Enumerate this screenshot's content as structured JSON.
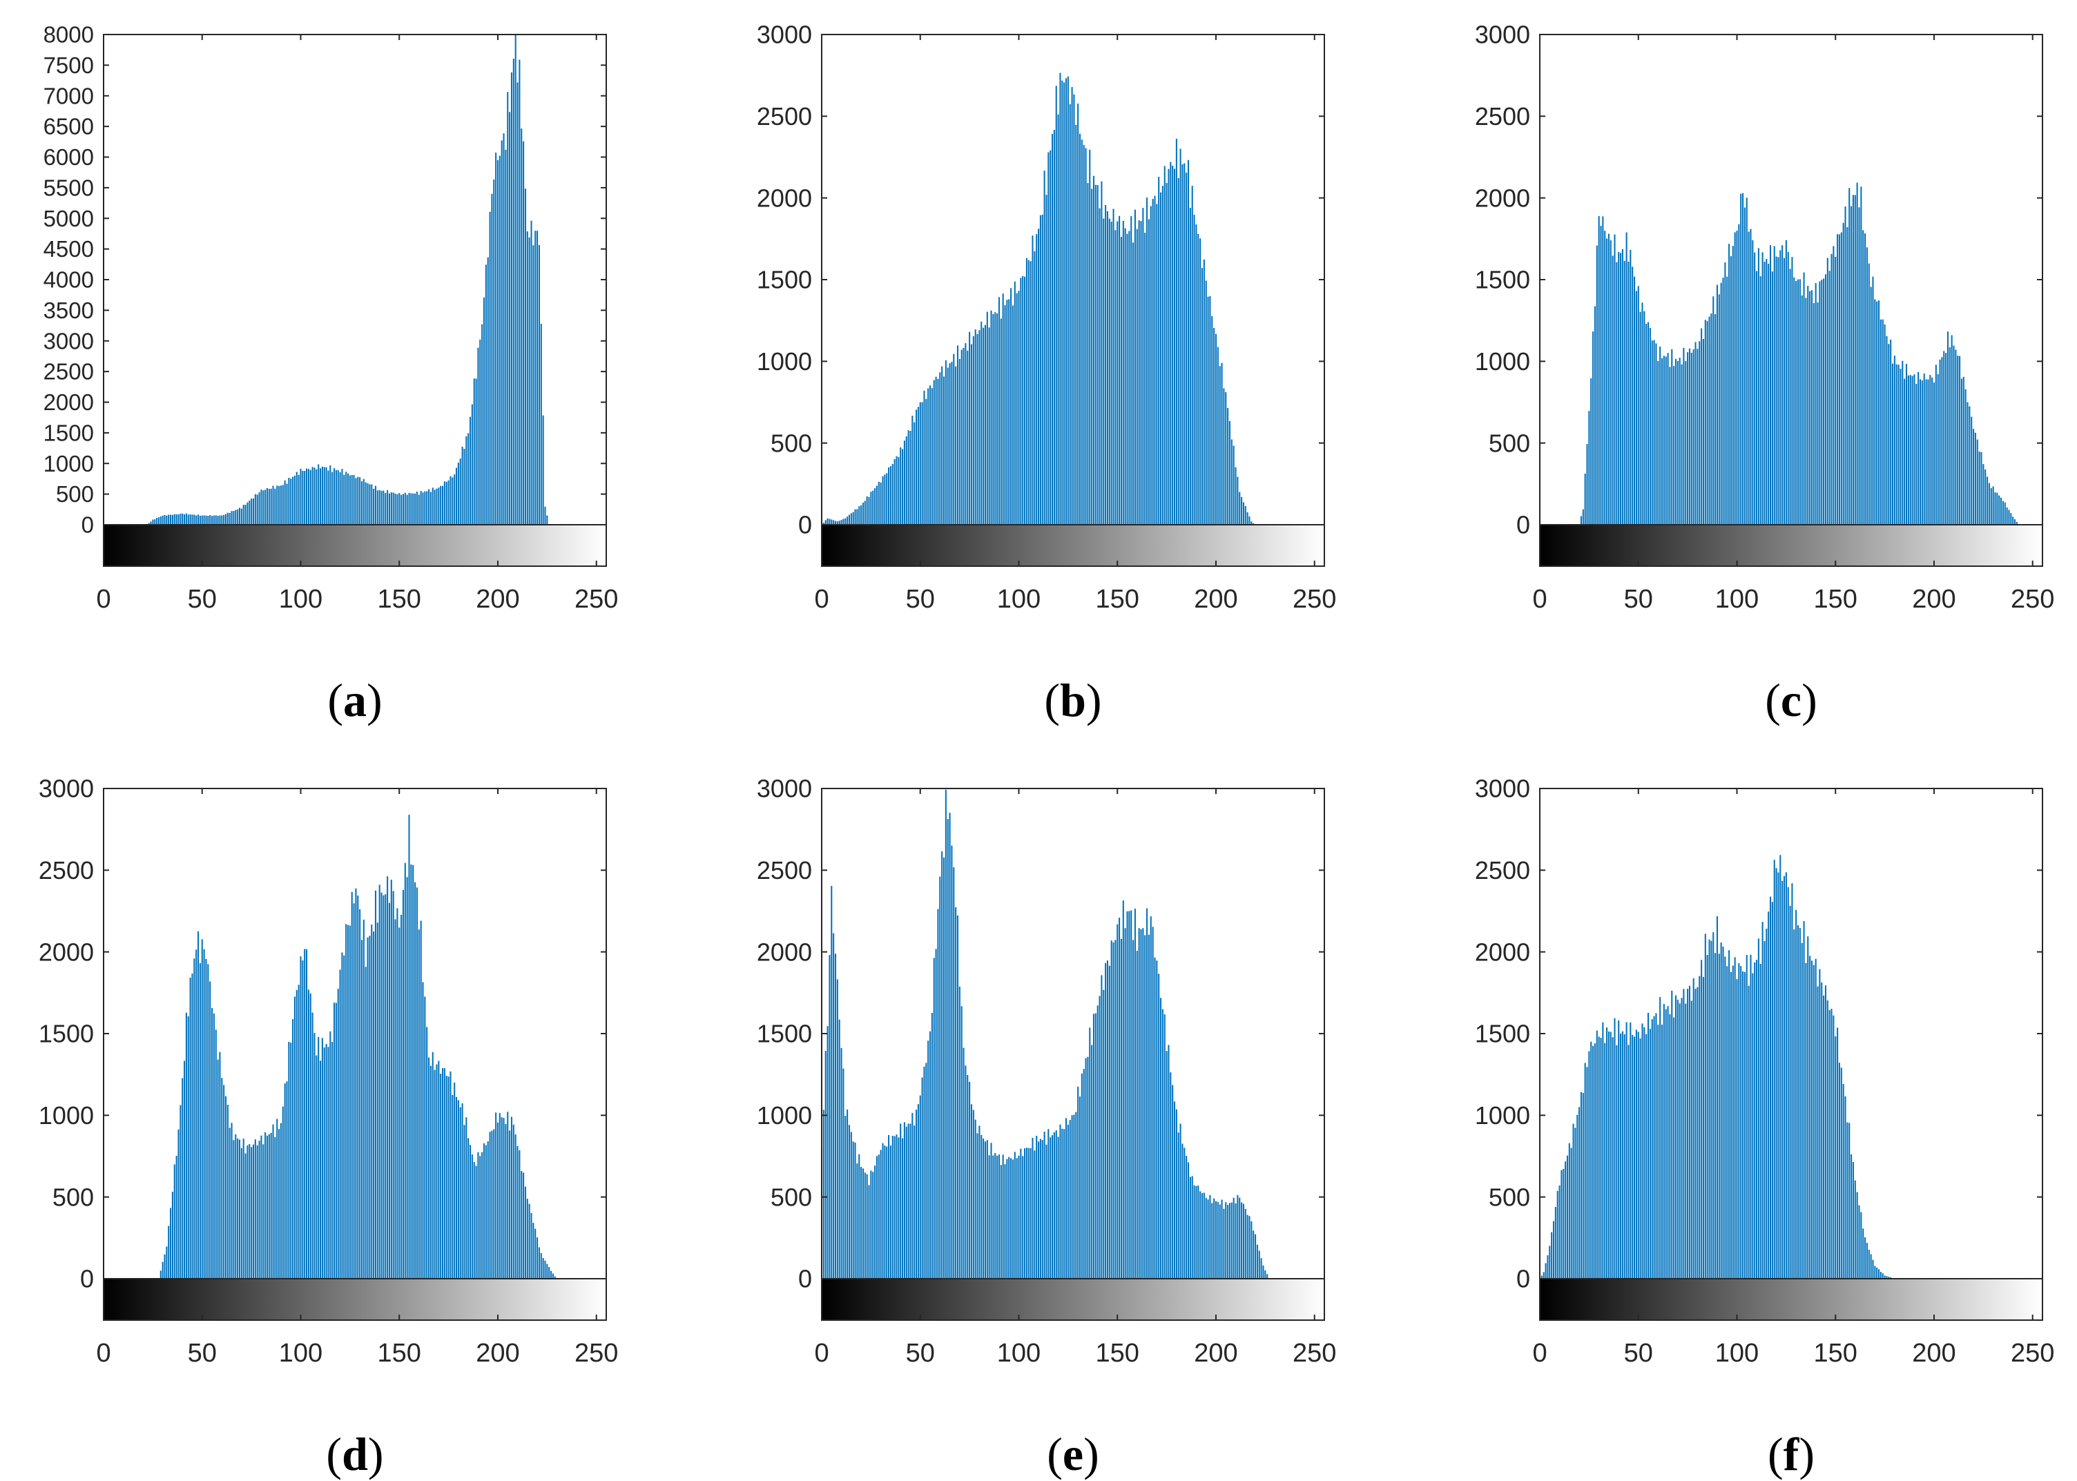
{
  "figure": {
    "bar_color": "#0072BD",
    "axis_color": "#262626",
    "gradient_start": "#000000",
    "gradient_end": "#ffffff"
  },
  "chart_data": [
    {
      "type": "bar",
      "panel": "a",
      "caption_open": "(",
      "caption_letter": "a",
      "caption_close": ")",
      "title": "",
      "xlabel": "",
      "ylabel": "",
      "xlim": [
        0,
        255
      ],
      "ylim": [
        0,
        8000
      ],
      "xticks": [
        0,
        50,
        100,
        150,
        200,
        250
      ],
      "yticks": [
        0,
        500,
        1000,
        1500,
        2000,
        2500,
        3000,
        3500,
        4000,
        4500,
        5000,
        5500,
        6000,
        6500,
        7000,
        7500,
        8000
      ],
      "colorbar": "grayscale 0-255",
      "profile": [
        [
          0,
          0
        ],
        [
          22,
          0
        ],
        [
          25,
          80
        ],
        [
          30,
          150
        ],
        [
          40,
          180
        ],
        [
          50,
          150
        ],
        [
          60,
          150
        ],
        [
          70,
          280
        ],
        [
          80,
          560
        ],
        [
          90,
          640
        ],
        [
          100,
          880
        ],
        [
          110,
          950
        ],
        [
          120,
          880
        ],
        [
          130,
          760
        ],
        [
          140,
          560
        ],
        [
          150,
          500
        ],
        [
          160,
          520
        ],
        [
          170,
          600
        ],
        [
          178,
          820
        ],
        [
          185,
          1500
        ],
        [
          192,
          3300
        ],
        [
          198,
          5800
        ],
        [
          204,
          6400
        ],
        [
          209,
          7900
        ],
        [
          212,
          6800
        ],
        [
          215,
          4800
        ],
        [
          221,
          4700
        ],
        [
          224,
          300
        ],
        [
          226,
          0
        ],
        [
          255,
          0
        ]
      ]
    },
    {
      "type": "bar",
      "panel": "b",
      "caption_open": "(",
      "caption_letter": "b",
      "caption_close": ")",
      "title": "",
      "xlabel": "",
      "ylabel": "",
      "xlim": [
        0,
        255
      ],
      "ylim": [
        0,
        3000
      ],
      "xticks": [
        0,
        50,
        100,
        150,
        200,
        250
      ],
      "yticks": [
        0,
        500,
        1000,
        1500,
        2000,
        2500,
        3000
      ],
      "colorbar": "grayscale 0-255",
      "profile": [
        [
          0,
          0
        ],
        [
          3,
          40
        ],
        [
          8,
          20
        ],
        [
          12,
          40
        ],
        [
          20,
          120
        ],
        [
          30,
          270
        ],
        [
          40,
          450
        ],
        [
          50,
          750
        ],
        [
          60,
          930
        ],
        [
          70,
          1050
        ],
        [
          80,
          1200
        ],
        [
          90,
          1330
        ],
        [
          100,
          1450
        ],
        [
          110,
          1800
        ],
        [
          116,
          2300
        ],
        [
          120,
          2650
        ],
        [
          123,
          2750
        ],
        [
          128,
          2600
        ],
        [
          135,
          2200
        ],
        [
          145,
          1900
        ],
        [
          155,
          1800
        ],
        [
          165,
          1900
        ],
        [
          175,
          2150
        ],
        [
          180,
          2250
        ],
        [
          185,
          2200
        ],
        [
          195,
          1500
        ],
        [
          205,
          800
        ],
        [
          212,
          200
        ],
        [
          218,
          20
        ],
        [
          220,
          0
        ],
        [
          255,
          0
        ]
      ]
    },
    {
      "type": "bar",
      "panel": "c",
      "caption_open": "(",
      "caption_letter": "c",
      "caption_close": ")",
      "title": "",
      "xlabel": "",
      "ylabel": "",
      "xlim": [
        0,
        255
      ],
      "ylim": [
        0,
        3000
      ],
      "xticks": [
        0,
        50,
        100,
        150,
        200,
        250
      ],
      "yticks": [
        0,
        500,
        1000,
        1500,
        2000,
        2500,
        3000
      ],
      "colorbar": "grayscale 0-255",
      "profile": [
        [
          0,
          0
        ],
        [
          20,
          0
        ],
        [
          22,
          100
        ],
        [
          26,
          900
        ],
        [
          30,
          1900
        ],
        [
          35,
          1750
        ],
        [
          40,
          1650
        ],
        [
          45,
          1700
        ],
        [
          50,
          1400
        ],
        [
          60,
          1050
        ],
        [
          70,
          1000
        ],
        [
          80,
          1100
        ],
        [
          90,
          1400
        ],
        [
          100,
          1800
        ],
        [
          103,
          2050
        ],
        [
          110,
          1600
        ],
        [
          120,
          1650
        ],
        [
          125,
          1700
        ],
        [
          130,
          1500
        ],
        [
          140,
          1400
        ],
        [
          150,
          1700
        ],
        [
          158,
          2000
        ],
        [
          162,
          2050
        ],
        [
          168,
          1500
        ],
        [
          180,
          1000
        ],
        [
          190,
          900
        ],
        [
          200,
          900
        ],
        [
          208,
          1150
        ],
        [
          212,
          1050
        ],
        [
          220,
          600
        ],
        [
          228,
          250
        ],
        [
          235,
          150
        ],
        [
          240,
          50
        ],
        [
          243,
          0
        ],
        [
          255,
          0
        ]
      ]
    },
    {
      "type": "bar",
      "panel": "d",
      "caption_open": "(",
      "caption_letter": "d",
      "caption_close": ")",
      "title": "",
      "xlabel": "",
      "ylabel": "",
      "xlim": [
        0,
        255
      ],
      "ylim": [
        0,
        3000
      ],
      "xticks": [
        0,
        50,
        100,
        150,
        200,
        250
      ],
      "yticks": [
        0,
        500,
        1000,
        1500,
        2000,
        2500,
        3000
      ],
      "colorbar": "grayscale 0-255",
      "profile": [
        [
          0,
          0
        ],
        [
          28,
          0
        ],
        [
          32,
          200
        ],
        [
          38,
          900
        ],
        [
          43,
          1700
        ],
        [
          47,
          2050
        ],
        [
          52,
          2000
        ],
        [
          58,
          1400
        ],
        [
          65,
          900
        ],
        [
          72,
          800
        ],
        [
          80,
          850
        ],
        [
          90,
          950
        ],
        [
          97,
          1700
        ],
        [
          102,
          2050
        ],
        [
          108,
          1400
        ],
        [
          115,
          1450
        ],
        [
          122,
          2050
        ],
        [
          128,
          2400
        ],
        [
          133,
          2000
        ],
        [
          140,
          2350
        ],
        [
          146,
          2400
        ],
        [
          150,
          2150
        ],
        [
          155,
          2700
        ],
        [
          160,
          2250
        ],
        [
          165,
          1350
        ],
        [
          175,
          1250
        ],
        [
          183,
          1000
        ],
        [
          188,
          700
        ],
        [
          195,
          850
        ],
        [
          200,
          1000
        ],
        [
          208,
          950
        ],
        [
          215,
          500
        ],
        [
          222,
          150
        ],
        [
          228,
          30
        ],
        [
          230,
          0
        ],
        [
          255,
          0
        ]
      ]
    },
    {
      "type": "bar",
      "panel": "e",
      "caption_open": "(",
      "caption_letter": "e",
      "caption_close": ")",
      "title": "",
      "xlabel": "",
      "ylabel": "",
      "xlim": [
        0,
        255
      ],
      "ylim": [
        0,
        3000
      ],
      "xticks": [
        0,
        50,
        100,
        150,
        200,
        250
      ],
      "yticks": [
        0,
        500,
        1000,
        1500,
        2000,
        2500,
        3000
      ],
      "colorbar": "grayscale 0-255",
      "profile": [
        [
          0,
          800
        ],
        [
          3,
          1600
        ],
        [
          5,
          2350
        ],
        [
          8,
          1800
        ],
        [
          12,
          1050
        ],
        [
          18,
          750
        ],
        [
          24,
          600
        ],
        [
          30,
          800
        ],
        [
          40,
          900
        ],
        [
          48,
          1000
        ],
        [
          55,
          1500
        ],
        [
          60,
          2450
        ],
        [
          64,
          2950
        ],
        [
          68,
          2350
        ],
        [
          72,
          1400
        ],
        [
          78,
          950
        ],
        [
          85,
          800
        ],
        [
          92,
          720
        ],
        [
          100,
          760
        ],
        [
          110,
          850
        ],
        [
          120,
          900
        ],
        [
          128,
          1000
        ],
        [
          135,
          1400
        ],
        [
          142,
          1800
        ],
        [
          150,
          2150
        ],
        [
          156,
          2250
        ],
        [
          160,
          2100
        ],
        [
          167,
          2200
        ],
        [
          172,
          1750
        ],
        [
          180,
          1000
        ],
        [
          188,
          600
        ],
        [
          195,
          500
        ],
        [
          205,
          450
        ],
        [
          212,
          500
        ],
        [
          218,
          350
        ],
        [
          224,
          80
        ],
        [
          227,
          0
        ],
        [
          255,
          0
        ]
      ]
    },
    {
      "type": "bar",
      "panel": "f",
      "caption_open": "(",
      "caption_letter": "f",
      "caption_close": ")",
      "title": "",
      "xlabel": "",
      "ylabel": "",
      "xlim": [
        0,
        255
      ],
      "ylim": [
        0,
        3000
      ],
      "xticks": [
        0,
        50,
        100,
        150,
        200,
        250
      ],
      "yticks": [
        0,
        500,
        1000,
        1500,
        2000,
        2500,
        3000
      ],
      "colorbar": "grayscale 0-255",
      "profile": [
        [
          0,
          0
        ],
        [
          2,
          40
        ],
        [
          5,
          200
        ],
        [
          10,
          600
        ],
        [
          15,
          800
        ],
        [
          20,
          1050
        ],
        [
          25,
          1400
        ],
        [
          30,
          1500
        ],
        [
          40,
          1520
        ],
        [
          50,
          1500
        ],
        [
          60,
          1620
        ],
        [
          70,
          1700
        ],
        [
          80,
          1800
        ],
        [
          85,
          2050
        ],
        [
          90,
          2100
        ],
        [
          95,
          1950
        ],
        [
          100,
          1900
        ],
        [
          108,
          1900
        ],
        [
          115,
          2150
        ],
        [
          120,
          2550
        ],
        [
          125,
          2450
        ],
        [
          130,
          2200
        ],
        [
          135,
          2050
        ],
        [
          145,
          1750
        ],
        [
          150,
          1550
        ],
        [
          155,
          1100
        ],
        [
          160,
          600
        ],
        [
          165,
          250
        ],
        [
          170,
          80
        ],
        [
          175,
          20
        ],
        [
          180,
          0
        ],
        [
          255,
          0
        ]
      ]
    }
  ]
}
